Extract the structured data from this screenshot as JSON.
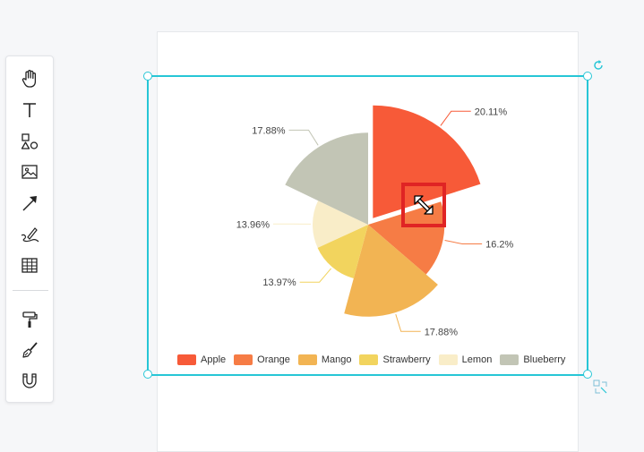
{
  "toolbar": {
    "tools": [
      {
        "name": "hand-tool",
        "icon": "hand-icon"
      },
      {
        "name": "text-tool",
        "icon": "text-icon"
      },
      {
        "name": "shapes-tool",
        "icon": "shapes-icon"
      },
      {
        "name": "image-tool",
        "icon": "image-icon"
      },
      {
        "name": "arrow-tool",
        "icon": "arrow-icon"
      },
      {
        "name": "pen-tool",
        "icon": "pen-icon"
      },
      {
        "name": "table-tool",
        "icon": "table-icon"
      },
      {
        "name": "format-painter-tool",
        "icon": "paint-roller-icon"
      },
      {
        "name": "brush-tool",
        "icon": "brush-icon"
      },
      {
        "name": "magnet-tool",
        "icon": "magnet-icon"
      }
    ]
  },
  "selection": {
    "color": "#27c6d6",
    "rotate_icon": "rotate-icon",
    "resize_icon": "resize-corner-icon",
    "cursor_icon": "move-cursor-icon"
  },
  "chart_data": {
    "type": "pie",
    "subtype": "nightingale-rose",
    "categories": [
      "Apple",
      "Orange",
      "Mango",
      "Strawberry",
      "Lemon",
      "Blueberry"
    ],
    "values": [
      20.11,
      16.2,
      17.88,
      13.97,
      13.96,
      17.88
    ],
    "labels": [
      "20.11%",
      "16.2%",
      "17.88%",
      "13.97%",
      "13.96%",
      "17.88%"
    ],
    "colors": [
      "#f75a38",
      "#f67c45",
      "#f2b453",
      "#f2d45e",
      "#f9edc8",
      "#c2c5b5"
    ],
    "exploded": "Apple",
    "legend_position": "bottom"
  }
}
